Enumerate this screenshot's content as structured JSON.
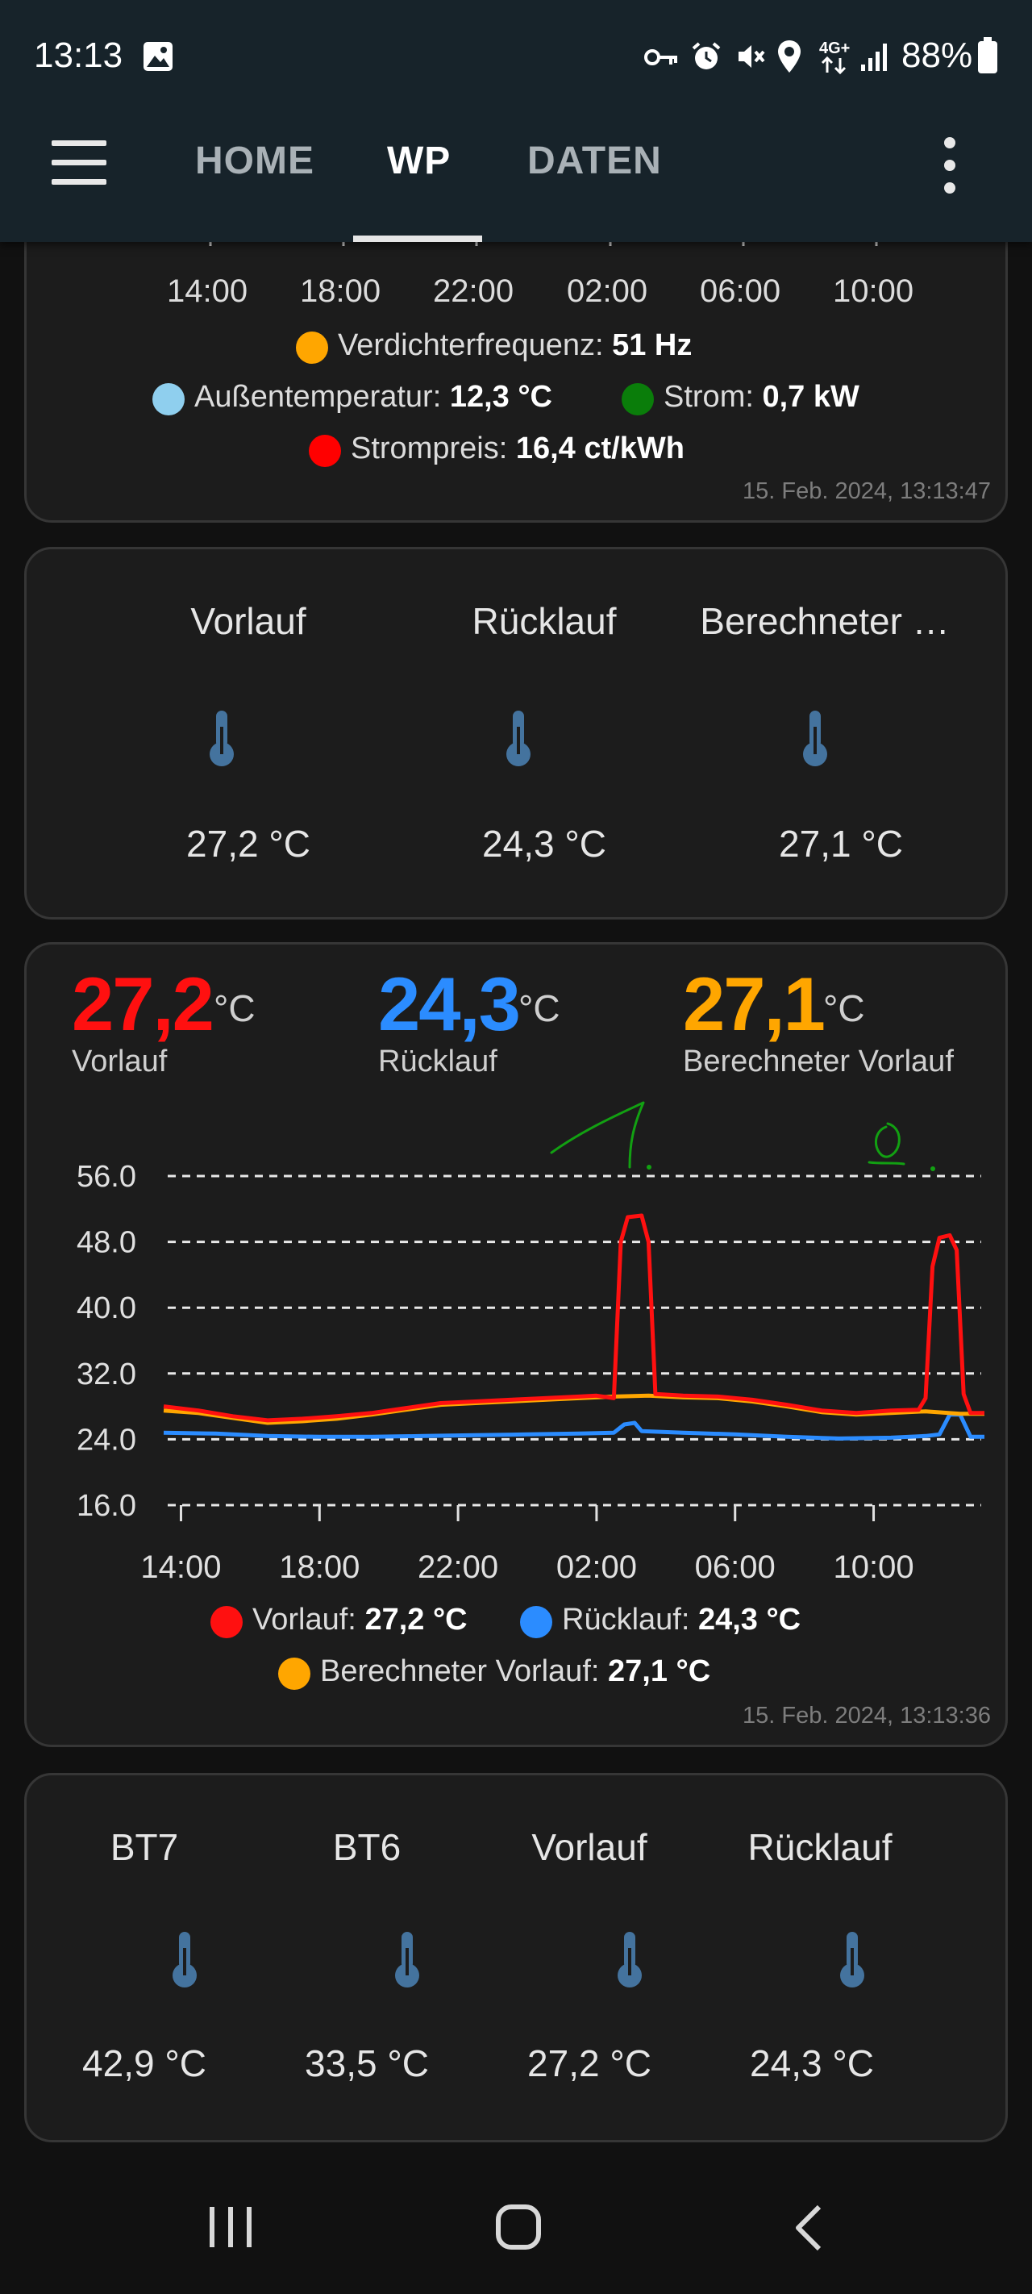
{
  "status_bar": {
    "time": "13:13",
    "battery": "88%"
  },
  "app_bar": {
    "tabs": [
      {
        "label": "HOME",
        "active": false
      },
      {
        "label": "WP",
        "active": true
      },
      {
        "label": "DATEN",
        "active": false
      }
    ]
  },
  "card1": {
    "x_ticks": [
      "14:00",
      "18:00",
      "22:00",
      "02:00",
      "06:00",
      "10:00"
    ],
    "legend": [
      {
        "name": "Verdichterfrequenz:",
        "value": "51 Hz",
        "color": "#ffa600"
      },
      {
        "name": "Außentemperatur:",
        "value": "12,3 °C",
        "color": "#8fcfee"
      },
      {
        "name": "Strom:",
        "value": "0,7 kW",
        "color": "#0a7d0a"
      },
      {
        "name": "Strompreis:",
        "value": "16,4 ct/kWh",
        "color": "#ff0000"
      }
    ],
    "timestamp": "15. Feb. 2024, 13:13:47"
  },
  "card2": {
    "items": [
      {
        "title": "Vorlauf",
        "value": "27,2 °C"
      },
      {
        "title": "Rücklauf",
        "value": "24,3 °C"
      },
      {
        "title": "Berechneter …",
        "value": "27,1 °C"
      }
    ]
  },
  "card3": {
    "headline": [
      {
        "value": "27,2",
        "unit": "°C",
        "name": "Vorlauf",
        "color": "#ff1010"
      },
      {
        "value": "24,3",
        "unit": "°C",
        "name": "Rücklauf",
        "color": "#2b8cff"
      },
      {
        "value": "27,1",
        "unit": "°C",
        "name": "Berechneter Vorlauf",
        "color": "#ffa600"
      }
    ],
    "legend": [
      {
        "name": "Vorlauf:",
        "value": "27,2 °C",
        "color": "#ff1010"
      },
      {
        "name": "Rücklauf:",
        "value": "24,3 °C",
        "color": "#2b8cff"
      },
      {
        "name": "Berechneter Vorlauf:",
        "value": "27,1 °C",
        "color": "#ffa600"
      }
    ],
    "timestamp": "15. Feb. 2024, 13:13:36"
  },
  "chart_data": {
    "type": "line",
    "x_ticks": [
      "14:00",
      "18:00",
      "22:00",
      "02:00",
      "06:00",
      "10:00"
    ],
    "y_ticks": [
      "56.0",
      "48.0",
      "40.0",
      "32.0",
      "24.0",
      "16.0"
    ],
    "ylim": [
      16,
      56
    ],
    "xlim_hours": [
      13.5,
      37.2
    ],
    "grid": true,
    "legend_position": "bottom",
    "series": [
      {
        "name": "Vorlauf",
        "color": "#ff1010",
        "points": [
          [
            13.5,
            28.0
          ],
          [
            14.5,
            27.5
          ],
          [
            15.5,
            26.8
          ],
          [
            16.5,
            26.3
          ],
          [
            17.5,
            26.5
          ],
          [
            18.5,
            26.8
          ],
          [
            19.5,
            27.2
          ],
          [
            20.5,
            27.8
          ],
          [
            21.5,
            28.4
          ],
          [
            22.5,
            28.6
          ],
          [
            23.5,
            28.8
          ],
          [
            24.5,
            29.0
          ],
          [
            25.5,
            29.2
          ],
          [
            26.0,
            29.3
          ],
          [
            26.5,
            29.0
          ],
          [
            26.7,
            48.0
          ],
          [
            26.9,
            51.0
          ],
          [
            27.3,
            51.2
          ],
          [
            27.5,
            48.0
          ],
          [
            27.7,
            29.5
          ],
          [
            28.5,
            29.3
          ],
          [
            29.5,
            29.2
          ],
          [
            30.5,
            28.8
          ],
          [
            31.5,
            28.2
          ],
          [
            32.5,
            27.5
          ],
          [
            33.5,
            27.2
          ],
          [
            34.5,
            27.5
          ],
          [
            35.3,
            27.6
          ],
          [
            35.5,
            29.0
          ],
          [
            35.7,
            45.0
          ],
          [
            35.9,
            48.5
          ],
          [
            36.2,
            48.8
          ],
          [
            36.4,
            47.0
          ],
          [
            36.6,
            29.5
          ],
          [
            36.8,
            27.2
          ],
          [
            37.2,
            27.2
          ]
        ]
      },
      {
        "name": "Rücklauf",
        "color": "#2b8cff",
        "points": [
          [
            13.5,
            24.8
          ],
          [
            15.0,
            24.7
          ],
          [
            16.5,
            24.4
          ],
          [
            18.0,
            24.3
          ],
          [
            19.5,
            24.3
          ],
          [
            21.0,
            24.4
          ],
          [
            22.5,
            24.5
          ],
          [
            24.0,
            24.6
          ],
          [
            25.5,
            24.7
          ],
          [
            26.5,
            24.8
          ],
          [
            26.8,
            25.8
          ],
          [
            27.1,
            26.0
          ],
          [
            27.3,
            25.0
          ],
          [
            28.5,
            24.8
          ],
          [
            30.0,
            24.6
          ],
          [
            31.5,
            24.3
          ],
          [
            33.0,
            24.1
          ],
          [
            34.5,
            24.2
          ],
          [
            35.5,
            24.4
          ],
          [
            35.9,
            24.6
          ],
          [
            36.2,
            27.0
          ],
          [
            36.5,
            27.0
          ],
          [
            36.8,
            24.3
          ],
          [
            37.2,
            24.3
          ]
        ]
      },
      {
        "name": "Berechneter Vorlauf",
        "color": "#ffa600",
        "points": [
          [
            13.5,
            27.5
          ],
          [
            14.5,
            27.2
          ],
          [
            15.5,
            26.6
          ],
          [
            16.5,
            26.0
          ],
          [
            17.5,
            26.2
          ],
          [
            18.5,
            26.5
          ],
          [
            19.5,
            27.0
          ],
          [
            20.5,
            27.6
          ],
          [
            21.5,
            28.2
          ],
          [
            22.5,
            28.4
          ],
          [
            23.5,
            28.6
          ],
          [
            24.5,
            28.8
          ],
          [
            25.5,
            29.0
          ],
          [
            26.5,
            29.2
          ],
          [
            27.5,
            29.3
          ],
          [
            28.5,
            29.1
          ],
          [
            29.5,
            29.0
          ],
          [
            30.5,
            28.6
          ],
          [
            31.5,
            28.0
          ],
          [
            32.5,
            27.3
          ],
          [
            33.5,
            27.0
          ],
          [
            34.5,
            27.2
          ],
          [
            35.5,
            27.4
          ],
          [
            36.5,
            27.1
          ],
          [
            37.2,
            27.1
          ]
        ]
      }
    ]
  },
  "card4": {
    "items": [
      {
        "title": "BT7",
        "value": "42,9 °C"
      },
      {
        "title": "BT6",
        "value": "33,5 °C"
      },
      {
        "title": "Vorlauf",
        "value": "27,2 °C"
      },
      {
        "title": "Rücklauf",
        "value": "24,3 °C"
      }
    ]
  },
  "nav_bar": {
    "recents_icon": "recents-icon",
    "home_icon": "home-icon",
    "back_icon": "back-icon"
  }
}
